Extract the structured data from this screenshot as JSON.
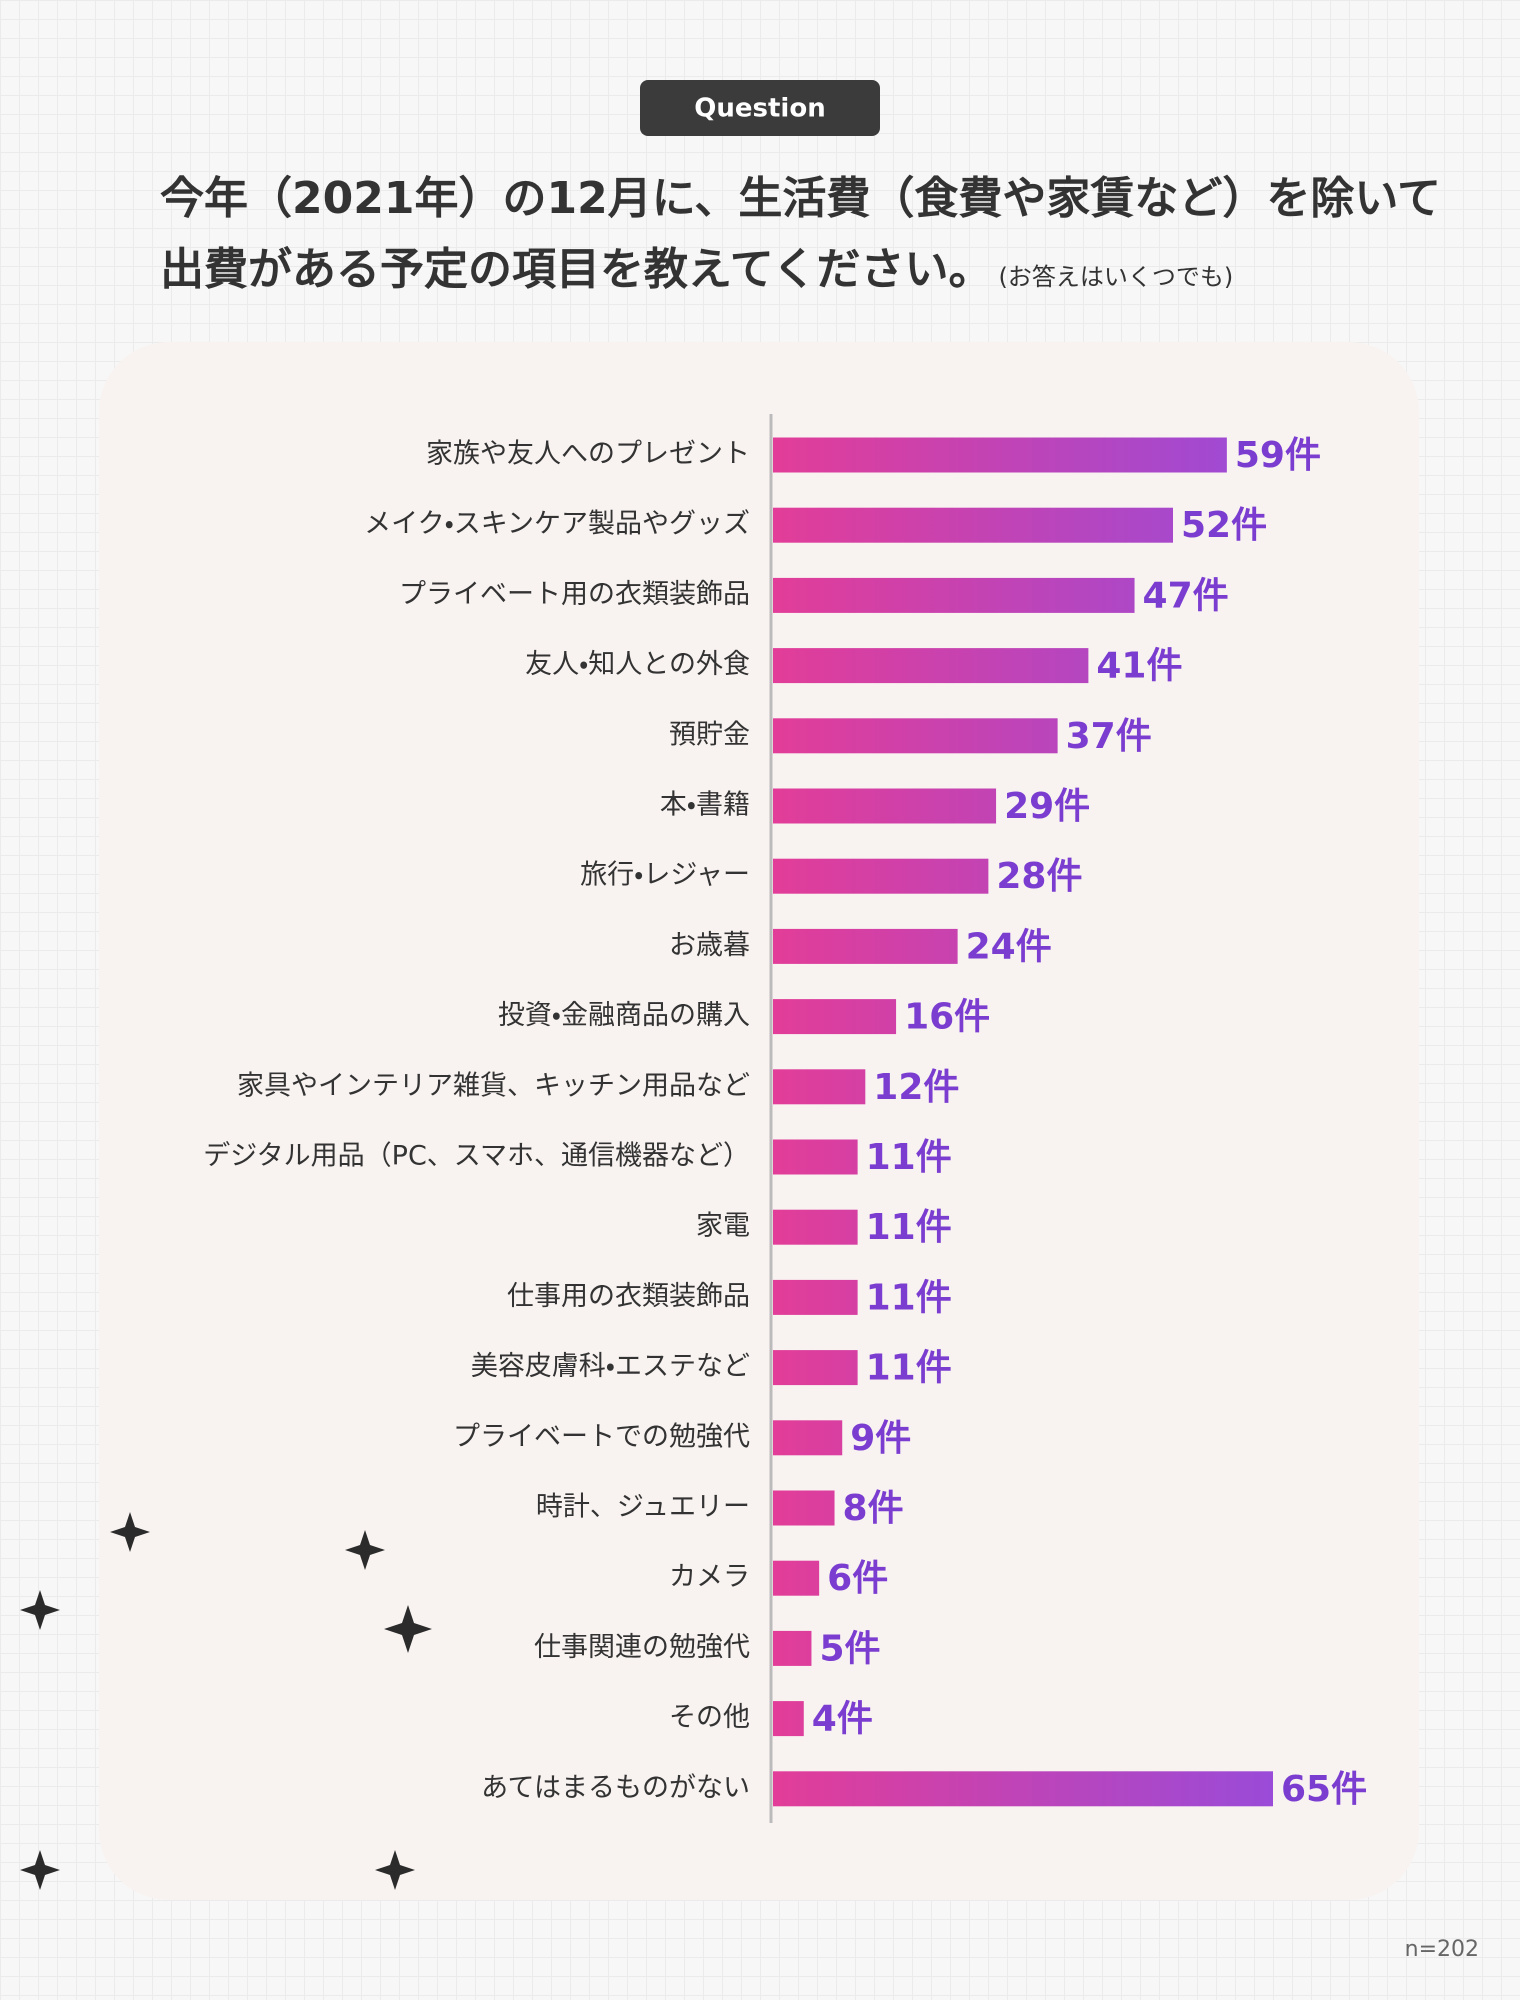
{
  "badge": "Question",
  "chart_data": {
    "type": "bar",
    "orientation": "horizontal",
    "title": [
      "今年（2021年）の12月に、生活費（食費や家賃など）を除いて",
      "出費がある予定の項目を教えてください。"
    ],
    "subtitle": "(お答えはいくつでも)",
    "categories": [
      "家族や友人へのプレゼント",
      "メイク・スキンケア製品やグッズ",
      "プライベート用の衣類装飾品",
      "友人・知人との外食",
      "預貯金",
      "本・書籍",
      "旅行・レジャー",
      "お歳暮",
      "投資・金融商品の購入",
      "家具やインテリア雑貨、キッチン用品など",
      "デジタル用品（PC、スマホ、通信機器など）",
      "家電",
      "仕事用の衣類装飾品",
      "美容皮膚科・エステなど",
      "プライベートでの勉強代",
      "時計、ジュエリー",
      "カメラ",
      "仕事関連の勉強代",
      "その他",
      "あてはまるものがない"
    ],
    "values": [
      59,
      52,
      47,
      41,
      37,
      29,
      28,
      24,
      16,
      12,
      11,
      11,
      11,
      11,
      9,
      8,
      6,
      5,
      4,
      65
    ],
    "value_labels": [
      "59件",
      "52件",
      "47件",
      "41件",
      "37件",
      "29件",
      "28件",
      "24件",
      "16件",
      "12件",
      "11件",
      "11件",
      "11件",
      "11件",
      "9件",
      "8件",
      "6件",
      "5件",
      "4件",
      "65件"
    ],
    "colors": [
      "#e23d98",
      "#9a4bd8"
    ],
    "label_color": "#7b3dd0",
    "note": "n=202"
  }
}
